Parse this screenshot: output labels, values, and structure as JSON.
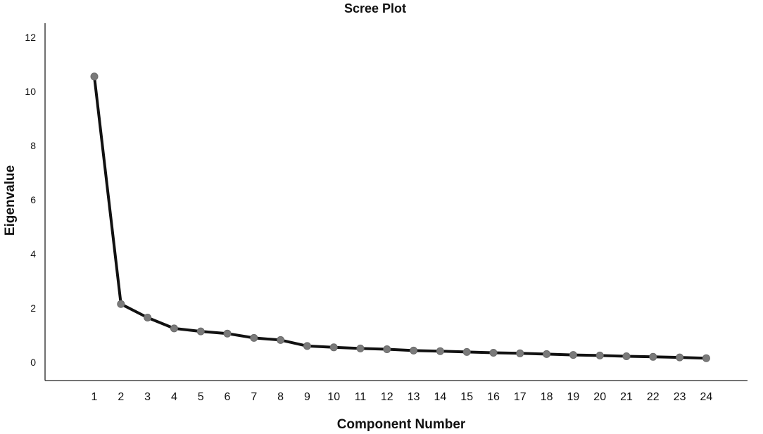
{
  "chart_data": {
    "type": "line",
    "title": "Scree Plot",
    "xlabel": "Component Number",
    "ylabel": "Eigenvalue",
    "x": [
      1,
      2,
      3,
      4,
      5,
      6,
      7,
      8,
      9,
      10,
      11,
      12,
      13,
      14,
      15,
      16,
      17,
      18,
      19,
      20,
      21,
      22,
      23,
      24
    ],
    "x_tick_labels": [
      "1",
      "2",
      "3",
      "4",
      "5",
      "6",
      "7",
      "8",
      "9",
      "10",
      "11",
      "12",
      "13",
      "14",
      "15",
      "16",
      "17",
      "18",
      "19",
      "20",
      "21",
      "22",
      "23",
      "24"
    ],
    "y_ticks": [
      0,
      2,
      4,
      6,
      8,
      10,
      12
    ],
    "y_tick_labels": [
      "0",
      "2",
      "4",
      "6",
      "8",
      "10",
      "12"
    ],
    "ylim": [
      0,
      12
    ],
    "grid": false,
    "series": [
      {
        "values": [
          10.55,
          2.15,
          1.65,
          1.25,
          1.14,
          1.06,
          0.9,
          0.82,
          0.6,
          0.55,
          0.51,
          0.48,
          0.43,
          0.41,
          0.38,
          0.35,
          0.33,
          0.3,
          0.27,
          0.25,
          0.22,
          0.2,
          0.18,
          0.15
        ],
        "line_color": "#111111",
        "marker_color": "#7a7a7a"
      }
    ]
  }
}
